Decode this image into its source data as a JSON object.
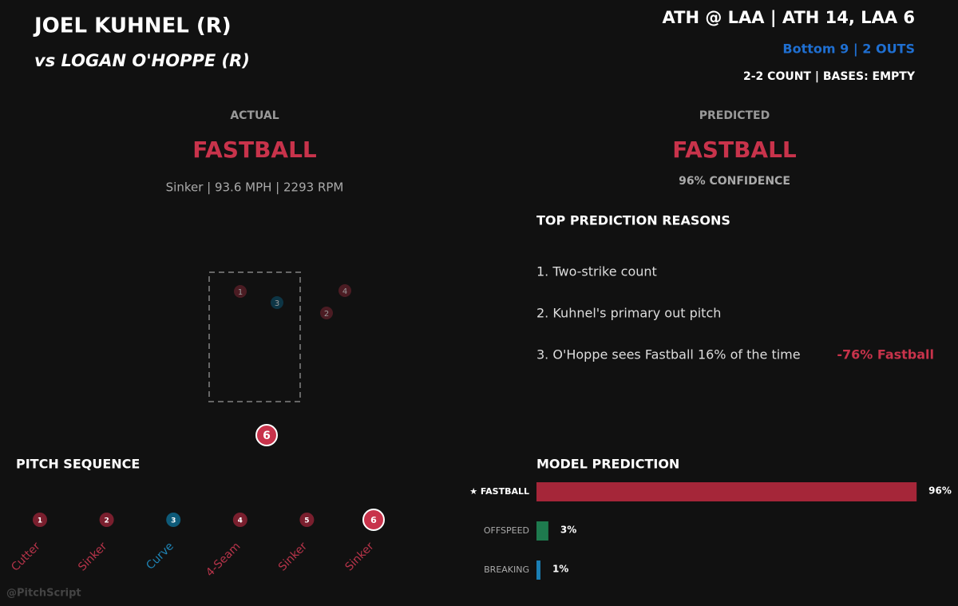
{
  "header": {
    "pitcher": "JOEL KUHNEL (R)",
    "batter": "vs LOGAN O'HOPPE (R)",
    "matchup": "ATH @ LAA  |  ATH 14, LAA 6",
    "inning": "Bottom 9  |  2 OUTS",
    "situation": "2-2 COUNT  |  BASES: EMPTY"
  },
  "actual": {
    "label": "ACTUAL",
    "pitch": "FASTBALL",
    "details": "Sinker  |  93.6 MPH  |  2293 RPM"
  },
  "predicted": {
    "label": "PREDICTED",
    "pitch": "FASTBALL",
    "confidence": "96% CONFIDENCE"
  },
  "reasons": {
    "title": "TOP PREDICTION REASONS",
    "items": [
      "1.  Two-strike count",
      "2.  Kuhnel's primary out pitch",
      "3.  O'Hoppe sees Fastball 16% of the time"
    ],
    "impact": "-76% Fastball"
  },
  "zone": {
    "pitches": [
      "1",
      "3",
      "2",
      "4",
      "6"
    ]
  },
  "sequence": {
    "title": "PITCH SEQUENCE",
    "pitches": [
      {
        "number": "1",
        "type": "Cutter",
        "color": "#7a1f2e"
      },
      {
        "number": "2",
        "type": "Sinker",
        "color": "#7a1f2e"
      },
      {
        "number": "3",
        "type": "Curve",
        "color": "#0e5a78"
      },
      {
        "number": "4",
        "type": "4-Seam",
        "color": "#7a1f2e"
      },
      {
        "number": "5",
        "type": "Sinker",
        "color": "#7a1f2e"
      },
      {
        "number": "6",
        "type": "Sinker",
        "color": "#c8334b"
      }
    ]
  },
  "model": {
    "title": "MODEL PREDICTION",
    "bars": [
      {
        "label": "★ FASTBALL",
        "value": 96,
        "value_label": "96%",
        "color": "#a52639"
      },
      {
        "label": "OFFSPEED",
        "value": 3,
        "value_label": "3%",
        "color": "#1e7a4e"
      },
      {
        "label": "BREAKING",
        "value": 1,
        "value_label": "1%",
        "color": "#1a7fb5"
      }
    ]
  },
  "footer": {
    "credit": "@PitchScript"
  }
}
